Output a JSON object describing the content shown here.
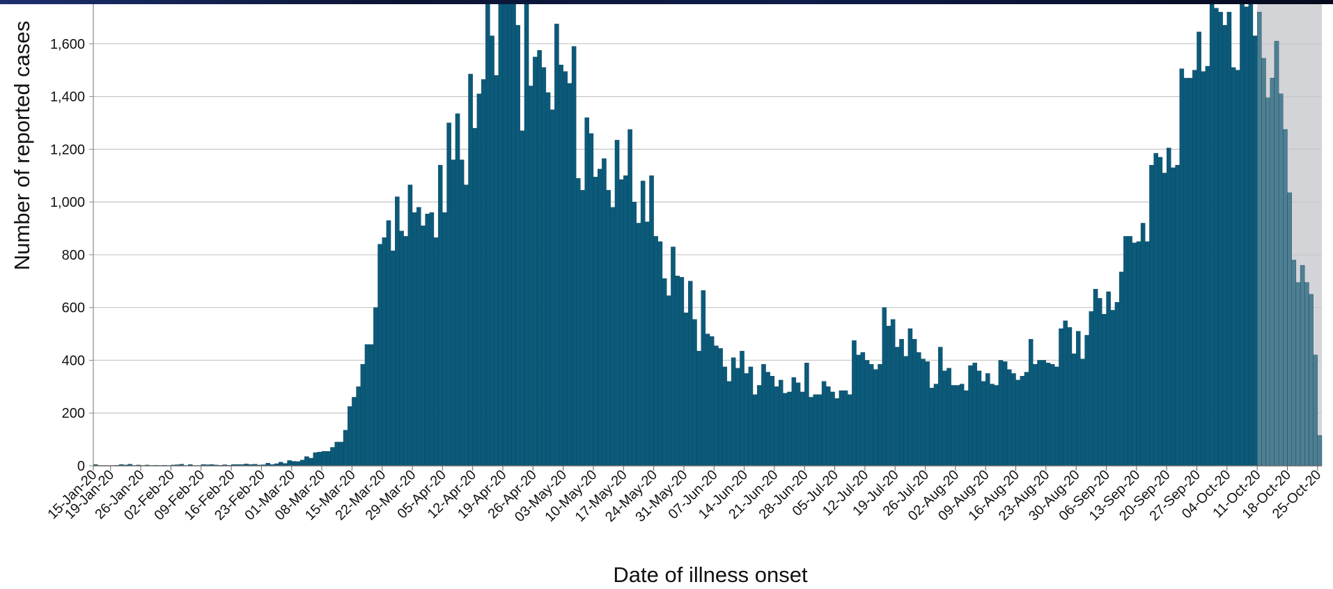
{
  "chart_data": {
    "type": "bar",
    "ylabel": "Number of reported cases",
    "xlabel": "Date of illness onset",
    "ylim": [
      0,
      1750
    ],
    "y_ticks": [
      0,
      200,
      400,
      600,
      800,
      1000,
      1200,
      1400,
      1600
    ],
    "y_tick_labels": [
      "0",
      "200",
      "400",
      "600",
      "800",
      "1,000",
      "1,200",
      "1,400",
      "1,600"
    ],
    "grid": "horizontal",
    "start_date": "15-Jan-20",
    "x_tick_labels": [
      "15-Jan-20",
      "19-Jan-20",
      "26-Jan-20",
      "02-Feb-20",
      "09-Feb-20",
      "16-Feb-20",
      "23-Feb-20",
      "01-Mar-20",
      "08-Mar-20",
      "15-Mar-20",
      "22-Mar-20",
      "29-Mar-20",
      "05-Apr-20",
      "12-Apr-20",
      "19-Apr-20",
      "26-Apr-20",
      "03-May-20",
      "10-May-20",
      "17-May-20",
      "24-May-20",
      "31-May-20",
      "07-Jun-20",
      "14-Jun-20",
      "21-Jun-20",
      "28-Jun-20",
      "05-Jul-20",
      "12-Jul-20",
      "19-Jul-20",
      "26-Jul-20",
      "02-Aug-20",
      "09-Aug-20",
      "16-Aug-20",
      "23-Aug-20",
      "30-Aug-20",
      "06-Sep-20",
      "13-Sep-20",
      "20-Sep-20",
      "27-Sep-20",
      "04-Oct-20",
      "11-Oct-20",
      "18-Oct-20",
      "25-Oct-20"
    ],
    "shaded_region": {
      "from": "11-Oct-20",
      "to": "25-Oct-20",
      "color": "#d3d4d8"
    },
    "bar_color": "#0c5a7a",
    "bar_color_shaded": "#4e7f93",
    "values": [
      5,
      1,
      1,
      1,
      1,
      2,
      5,
      3,
      6,
      1,
      3,
      1,
      3,
      1,
      2,
      1,
      2,
      1,
      3,
      4,
      6,
      1,
      5,
      1,
      1,
      5,
      4,
      5,
      3,
      2,
      4,
      2,
      5,
      5,
      5,
      7,
      5,
      6,
      3,
      4,
      10,
      5,
      8,
      14,
      9,
      20,
      17,
      16,
      22,
      35,
      29,
      50,
      52,
      55,
      55,
      70,
      90,
      90,
      135,
      225,
      260,
      300,
      385,
      460,
      460,
      600,
      840,
      865,
      930,
      815,
      1020,
      890,
      870,
      1065,
      960,
      980,
      910,
      955,
      960,
      865,
      1140,
      960,
      1300,
      1160,
      1335,
      1160,
      1065,
      1485,
      1280,
      1410,
      1465,
      1800,
      1630,
      1480,
      1850,
      1850,
      1790,
      1850,
      1670,
      1270,
      1750,
      1440,
      1550,
      1575,
      1510,
      1415,
      1350,
      1675,
      1520,
      1495,
      1450,
      1590,
      1090,
      1045,
      1320,
      1260,
      1095,
      1125,
      1165,
      1045,
      980,
      1235,
      1085,
      1100,
      1275,
      1000,
      920,
      1080,
      925,
      1100,
      870,
      850,
      710,
      645,
      830,
      720,
      715,
      580,
      700,
      555,
      435,
      665,
      500,
      490,
      455,
      445,
      375,
      320,
      410,
      370,
      435,
      350,
      375,
      270,
      305,
      385,
      355,
      340,
      300,
      325,
      275,
      280,
      335,
      315,
      280,
      390,
      260,
      270,
      270,
      320,
      300,
      280,
      255,
      285,
      285,
      270,
      475,
      420,
      430,
      400,
      385,
      365,
      385,
      600,
      530,
      555,
      450,
      480,
      415,
      520,
      480,
      430,
      405,
      395,
      295,
      310,
      450,
      360,
      370,
      305,
      305,
      310,
      285,
      380,
      390,
      360,
      320,
      350,
      310,
      305,
      400,
      395,
      365,
      350,
      325,
      340,
      355,
      480,
      385,
      400,
      400,
      390,
      385,
      375,
      520,
      550,
      525,
      425,
      510,
      405,
      495,
      585,
      670,
      635,
      575,
      660,
      590,
      620,
      735,
      870,
      870,
      845,
      850,
      920,
      850,
      1140,
      1185,
      1170,
      1110,
      1205,
      1130,
      1140,
      1505,
      1470,
      1470,
      1500,
      1645,
      1495,
      1515,
      1800,
      1735,
      1720,
      1670,
      1720,
      1510,
      1500,
      1820,
      1740,
      1750,
      1630,
      1720,
      1545,
      1395,
      1470,
      1610,
      1410,
      1275,
      1035,
      780,
      695,
      760,
      695,
      650,
      420,
      115
    ]
  }
}
